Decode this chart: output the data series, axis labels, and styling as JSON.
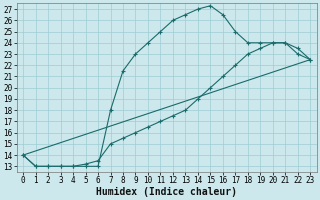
{
  "title": "",
  "xlabel": "Humidex (Indice chaleur)",
  "bg_color": "#cce8ec",
  "grid_color": "#9fcdd4",
  "line_color": "#1a6b6b",
  "xlim": [
    -0.5,
    23.5
  ],
  "ylim": [
    12.5,
    27.5
  ],
  "xticks": [
    0,
    1,
    2,
    3,
    4,
    5,
    6,
    7,
    8,
    9,
    10,
    11,
    12,
    13,
    14,
    15,
    16,
    17,
    18,
    19,
    20,
    21,
    22,
    23
  ],
  "yticks": [
    13,
    14,
    15,
    16,
    17,
    18,
    19,
    20,
    21,
    22,
    23,
    24,
    25,
    26,
    27
  ],
  "line1_x": [
    0,
    1,
    2,
    3,
    4,
    5,
    6,
    7,
    8,
    9,
    10,
    11,
    12,
    13,
    14,
    15,
    16,
    17,
    18,
    19,
    20,
    21,
    22,
    23
  ],
  "line1_y": [
    14,
    13,
    13,
    13,
    13,
    13,
    13,
    18,
    21.5,
    23,
    24,
    25,
    26,
    26.5,
    27,
    27.3,
    26.5,
    25,
    24,
    24,
    24,
    24,
    23,
    22.5
  ],
  "line2_x": [
    0,
    1,
    2,
    3,
    4,
    5,
    6,
    7,
    8,
    9,
    10,
    11,
    12,
    13,
    14,
    15,
    16,
    17,
    18,
    19,
    20,
    21,
    22,
    23
  ],
  "line2_y": [
    14,
    13,
    13,
    13,
    13,
    13.2,
    13.5,
    15,
    15.5,
    16,
    16.5,
    17,
    17.5,
    18,
    19,
    20,
    21,
    22,
    23,
    23.5,
    24,
    24,
    23.5,
    22.5
  ],
  "line3_x": [
    0,
    23
  ],
  "line3_y": [
    14,
    22.5
  ],
  "xlabel_fontsize": 7,
  "tick_fontsize": 5.5
}
